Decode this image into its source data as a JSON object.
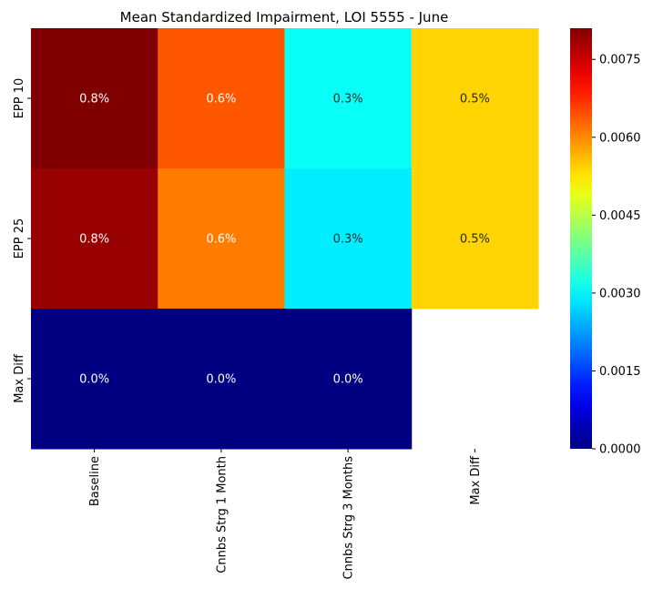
{
  "chart_data": {
    "type": "heatmap",
    "title": "Mean Standardized Impairment, LOI 5555 - June",
    "xlabel": "",
    "ylabel": "",
    "x_categories": [
      "Baseline",
      "Cnnbs Strg 1 Month",
      "Cnnbs Strg 3 Months",
      "Max Diff"
    ],
    "y_categories": [
      "EPP 10",
      "EPP 25",
      "Max Diff"
    ],
    "values": [
      [
        0.0081,
        0.0064,
        0.0031,
        0.0054
      ],
      [
        0.0079,
        0.0061,
        0.0029,
        0.0054
      ],
      [
        0.0,
        0.0,
        0.0,
        null
      ]
    ],
    "annotations": [
      [
        "0.8%",
        "0.6%",
        "0.3%",
        "0.5%"
      ],
      [
        "0.8%",
        "0.6%",
        "0.3%",
        "0.5%"
      ],
      [
        "0.0%",
        "0.0%",
        "0.0%",
        ""
      ]
    ],
    "colormap": "jet",
    "vmin": 0.0,
    "vmax": 0.0081,
    "colorbar_ticks": [
      0.0,
      0.0015,
      0.003,
      0.0045,
      0.006,
      0.0075
    ],
    "colorbar_tick_labels": [
      "0.0000",
      "0.0015",
      "0.0030",
      "0.0045",
      "0.0060",
      "0.0075"
    ]
  }
}
